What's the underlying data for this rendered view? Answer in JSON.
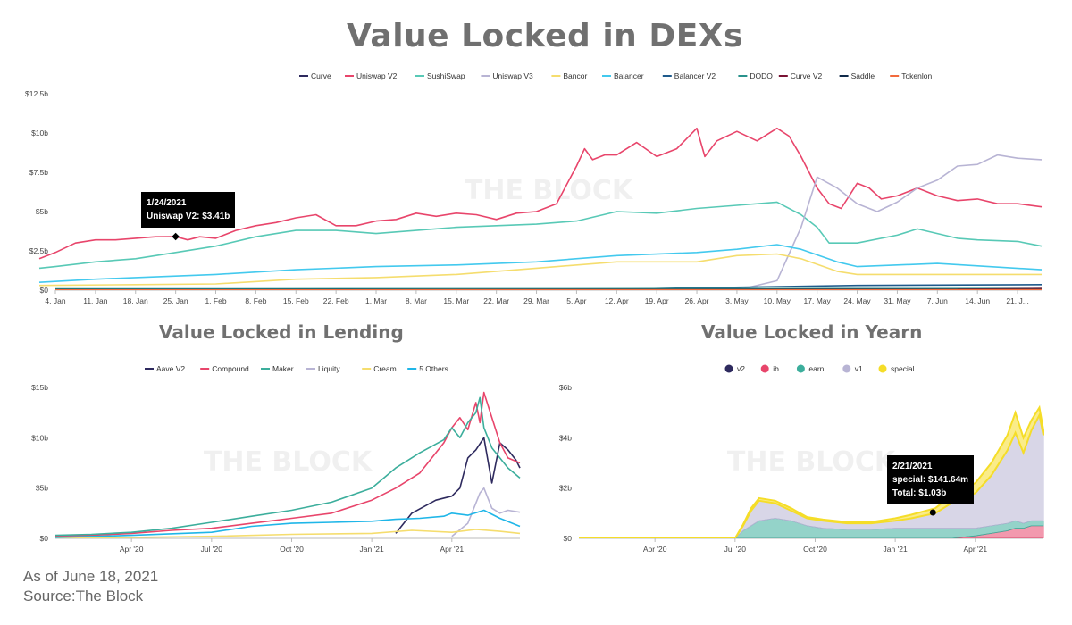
{
  "titles": {
    "main": "Value Locked in DEXs",
    "lending": "Value Locked in Lending",
    "yearn": "Value Locked in Yearn"
  },
  "watermark": "THE BLOCK",
  "footer": {
    "as_of": "As of June 18, 2021",
    "source": "Source:The Block"
  },
  "tooltips": {
    "dex": {
      "line1": "1/24/2021",
      "line2": "Uniswap V2: $3.41b"
    },
    "yearn": {
      "line1": "2/21/2021",
      "line2": "special: $141.64m",
      "line3": "Total: $1.03b"
    }
  },
  "chart_data": [
    {
      "id": "dex",
      "type": "line",
      "title": "Value Locked in DEXs",
      "y_ticks": [
        "$0",
        "$2.5b",
        "$5b",
        "$7.5b",
        "$10b",
        "$12.5b"
      ],
      "ylim": [
        0,
        12.5
      ],
      "x_ticks": [
        "4. Jan",
        "11. Jan",
        "18. Jan",
        "25. Jan",
        "1. Feb",
        "8. Feb",
        "15. Feb",
        "22. Feb",
        "1. Mar",
        "8. Mar",
        "15. Mar",
        "22. Mar",
        "29. Mar",
        "5. Apr",
        "12. Apr",
        "19. Apr",
        "26. Apr",
        "3. May",
        "10. May",
        "17. May",
        "24. May",
        "31. May",
        "7. Jun",
        "14. Jun",
        "21. J..."
      ],
      "xlim": [
        0,
        24.6
      ],
      "legend_position": "top",
      "series": [
        {
          "name": "Curve",
          "color": "#2e2a5e",
          "x": [
            0,
            24.6
          ],
          "y": [
            0.05,
            0.05
          ]
        },
        {
          "name": "Uniswap V2",
          "color": "#e8456b",
          "x": [
            -0.4,
            0,
            0.5,
            1,
            1.5,
            2,
            2.5,
            3,
            3.3,
            3.6,
            4,
            4.5,
            5,
            5.5,
            6,
            6.5,
            7,
            7.5,
            8,
            8.5,
            9,
            9.5,
            10,
            10.5,
            11,
            11.5,
            12,
            12.5,
            13,
            13.2,
            13.4,
            13.7,
            14,
            14.5,
            15,
            15.5,
            16,
            16.2,
            16.5,
            17,
            17.5,
            18,
            18.3,
            18.6,
            19,
            19.3,
            19.6,
            20,
            20.3,
            20.6,
            21,
            21.5,
            22,
            22.5,
            23,
            23.5,
            24,
            24.6
          ],
          "y": [
            2.0,
            2.4,
            3.0,
            3.2,
            3.2,
            3.3,
            3.4,
            3.41,
            3.2,
            3.4,
            3.3,
            3.8,
            4.1,
            4.3,
            4.6,
            4.8,
            4.1,
            4.1,
            4.4,
            4.5,
            4.9,
            4.7,
            4.9,
            4.8,
            4.5,
            4.9,
            5.0,
            5.5,
            7.9,
            9.0,
            8.3,
            8.6,
            8.6,
            9.4,
            8.5,
            9.0,
            10.3,
            8.5,
            9.5,
            10.1,
            9.5,
            10.3,
            9.8,
            8.5,
            6.5,
            5.5,
            5.2,
            6.8,
            6.5,
            5.8,
            6.0,
            6.5,
            6.0,
            5.7,
            5.8,
            5.5,
            5.5,
            5.3
          ]
        },
        {
          "name": "SushiSwap",
          "color": "#58c9b6",
          "x": [
            -0.4,
            0,
            1,
            2,
            3,
            4,
            5,
            6,
            7,
            8,
            9,
            10,
            11,
            12,
            13,
            14,
            15,
            16,
            17,
            18,
            18.6,
            19,
            19.3,
            20,
            21,
            21.5,
            22,
            22.5,
            23,
            24,
            24.6
          ],
          "y": [
            1.4,
            1.5,
            1.8,
            2.0,
            2.4,
            2.8,
            3.4,
            3.8,
            3.8,
            3.6,
            3.8,
            4.0,
            4.1,
            4.2,
            4.4,
            5.0,
            4.9,
            5.2,
            5.4,
            5.6,
            4.8,
            4.0,
            3.0,
            3.0,
            3.5,
            3.9,
            3.6,
            3.3,
            3.2,
            3.1,
            2.8
          ]
        },
        {
          "name": "Uniswap V3",
          "color": "#b8b4d4",
          "x": [
            17,
            18,
            18.6,
            19,
            19.5,
            20,
            20.5,
            21,
            21.5,
            22,
            22.5,
            23,
            23.5,
            24,
            24.6
          ],
          "y": [
            0.0,
            0.6,
            4.0,
            7.2,
            6.5,
            5.5,
            5.0,
            5.6,
            6.5,
            7.0,
            7.9,
            8.0,
            8.6,
            8.4,
            8.3
          ]
        },
        {
          "name": "Bancor",
          "color": "#f5dd6e",
          "x": [
            -0.4,
            2,
            4,
            6,
            8,
            10,
            12,
            14,
            16,
            17,
            18,
            18.6,
            19.5,
            20,
            22,
            24.6
          ],
          "y": [
            0.3,
            0.35,
            0.4,
            0.7,
            0.8,
            1.0,
            1.4,
            1.8,
            1.8,
            2.2,
            2.3,
            2.0,
            1.2,
            1.0,
            1.0,
            1.0
          ]
        },
        {
          "name": "Balancer",
          "color": "#43c9ee",
          "x": [
            -0.4,
            1,
            2,
            3,
            4,
            6,
            8,
            10,
            12,
            14,
            16,
            17,
            18,
            18.6,
            19.5,
            20,
            22,
            24.6
          ],
          "y": [
            0.5,
            0.7,
            0.8,
            0.9,
            1.0,
            1.3,
            1.5,
            1.6,
            1.8,
            2.2,
            2.4,
            2.6,
            2.9,
            2.6,
            1.8,
            1.5,
            1.7,
            1.3
          ]
        },
        {
          "name": "Balancer V2",
          "color": "#1e5a8c",
          "x": [
            13,
            16,
            20,
            24.6
          ],
          "y": [
            0.0,
            0.15,
            0.3,
            0.35
          ]
        },
        {
          "name": "DODO",
          "color": "#29928c",
          "x": [
            0,
            24.6
          ],
          "y": [
            0.08,
            0.1
          ]
        },
        {
          "name": "Curve V2",
          "color": "#7a1234",
          "x": [
            22.5,
            24.6
          ],
          "y": [
            0.05,
            0.1
          ]
        },
        {
          "name": "Saddle",
          "color": "#0f2a4a",
          "x": [
            0,
            24.6
          ],
          "y": [
            0.02,
            0.05
          ]
        },
        {
          "name": "Tokenlon",
          "color": "#f26a3c",
          "x": [
            0,
            24.6
          ],
          "y": [
            0.01,
            0.02
          ]
        }
      ]
    },
    {
      "id": "lending",
      "type": "line",
      "title": "Value Locked in Lending",
      "y_ticks": [
        "$0",
        "$5b",
        "$10b",
        "$15b"
      ],
      "ylim": [
        0,
        15
      ],
      "x_ticks": [
        "Apr '20",
        "Jul '20",
        "Oct '20",
        "Jan '21",
        "Apr '21"
      ],
      "x_tick_pos": [
        1,
        2,
        3,
        4,
        5
      ],
      "xlim": [
        0.05,
        5.85
      ],
      "legend_position": "top",
      "series": [
        {
          "name": "Aave V2",
          "color": "#2e2a5e",
          "x": [
            4.3,
            4.5,
            4.8,
            5.0,
            5.1,
            5.2,
            5.3,
            5.4,
            5.5,
            5.6,
            5.7,
            5.8,
            5.85
          ],
          "y": [
            0.5,
            2.5,
            3.8,
            4.2,
            5.0,
            8.0,
            8.8,
            10.0,
            5.5,
            9.5,
            8.8,
            7.8,
            7.0
          ]
        },
        {
          "name": "Compound",
          "color": "#e8456b",
          "x": [
            0.05,
            0.5,
            1,
            1.5,
            2,
            2.5,
            3,
            3.5,
            4,
            4.3,
            4.6,
            4.9,
            5.0,
            5.1,
            5.2,
            5.3,
            5.35,
            5.4,
            5.5,
            5.6,
            5.7,
            5.85
          ],
          "y": [
            0.2,
            0.3,
            0.5,
            0.8,
            1.0,
            1.5,
            2.0,
            2.5,
            3.8,
            5.0,
            6.5,
            9.5,
            11.0,
            12.0,
            10.8,
            13.5,
            11.5,
            14.5,
            12.0,
            9.5,
            8.0,
            7.5
          ]
        },
        {
          "name": "Maker",
          "color": "#3cae9c",
          "x": [
            0.05,
            0.5,
            1,
            1.5,
            2,
            2.5,
            3,
            3.5,
            4,
            4.3,
            4.6,
            4.9,
            5.0,
            5.1,
            5.2,
            5.3,
            5.35,
            5.4,
            5.5,
            5.6,
            5.7,
            5.85
          ],
          "y": [
            0.3,
            0.4,
            0.6,
            1.0,
            1.6,
            2.2,
            2.8,
            3.6,
            5.0,
            7.0,
            8.5,
            9.8,
            11.0,
            10.0,
            11.5,
            12.5,
            14.0,
            11.0,
            9.0,
            8.0,
            7.0,
            6.0
          ]
        },
        {
          "name": "Liquity",
          "color": "#b8b4d4",
          "x": [
            5.0,
            5.2,
            5.35,
            5.4,
            5.5,
            5.6,
            5.7,
            5.85
          ],
          "y": [
            0.2,
            1.5,
            4.5,
            5.0,
            3.0,
            2.5,
            2.8,
            2.6
          ]
        },
        {
          "name": "Cream",
          "color": "#f5dd6e",
          "x": [
            0.05,
            2,
            3,
            4,
            4.5,
            5.0,
            5.3,
            5.6,
            5.85
          ],
          "y": [
            0.0,
            0.2,
            0.4,
            0.5,
            0.8,
            0.6,
            0.9,
            0.7,
            0.5
          ]
        },
        {
          "name": "5 Others",
          "color": "#1fb6e8",
          "x": [
            0.05,
            1,
            2,
            2.5,
            3,
            3.5,
            4,
            4.3,
            4.6,
            4.9,
            5.0,
            5.2,
            5.4,
            5.6,
            5.85
          ],
          "y": [
            0.1,
            0.3,
            0.6,
            1.2,
            1.5,
            1.6,
            1.7,
            1.9,
            2.0,
            2.2,
            2.5,
            2.3,
            2.8,
            2.0,
            1.2
          ]
        }
      ]
    },
    {
      "id": "yearn",
      "type": "area",
      "title": "Value Locked in Yearn",
      "y_ticks": [
        "$0",
        "$2b",
        "$4b",
        "$6b"
      ],
      "ylim": [
        0,
        6
      ],
      "x_ticks": [
        "Apr '20",
        "Jul '20",
        "Oct '20",
        "Jan '21",
        "Apr '21"
      ],
      "x_tick_pos": [
        1,
        2,
        3,
        4,
        5
      ],
      "xlim": [
        0.05,
        5.85
      ],
      "legend_position": "top",
      "stacked": true,
      "x": [
        0.05,
        1.5,
        2.0,
        2.1,
        2.2,
        2.3,
        2.5,
        2.7,
        2.9,
        3.1,
        3.4,
        3.7,
        4.0,
        4.2,
        4.5,
        4.7,
        5.0,
        5.2,
        5.4,
        5.5,
        5.6,
        5.7,
        5.8,
        5.85
      ],
      "series": [
        {
          "name": "v2",
          "color": "#2e2a5e",
          "values": [
            0,
            0,
            0,
            0,
            0,
            0,
            0,
            0,
            0,
            0,
            0,
            0,
            0,
            0,
            0,
            0,
            0,
            0,
            0,
            0,
            0,
            0,
            0,
            0
          ]
        },
        {
          "name": "ib",
          "color": "#e8456b",
          "values": [
            0,
            0,
            0,
            0,
            0,
            0,
            0,
            0,
            0,
            0,
            0,
            0,
            0,
            0,
            0,
            0,
            0.1,
            0.2,
            0.3,
            0.4,
            0.4,
            0.5,
            0.5,
            0.5
          ]
        },
        {
          "name": "earn",
          "color": "#3cae9c",
          "values": [
            0,
            0,
            0,
            0.3,
            0.5,
            0.7,
            0.8,
            0.7,
            0.5,
            0.4,
            0.35,
            0.35,
            0.4,
            0.4,
            0.4,
            0.4,
            0.3,
            0.3,
            0.3,
            0.3,
            0.2,
            0.2,
            0.2,
            0.2
          ]
        },
        {
          "name": "v1",
          "color": "#b8b4d4",
          "values": [
            0,
            0,
            0,
            0.2,
            0.6,
            0.8,
            0.6,
            0.4,
            0.3,
            0.3,
            0.25,
            0.25,
            0.3,
            0.4,
            0.6,
            1.0,
            1.4,
            2.0,
            2.9,
            3.5,
            2.8,
            3.6,
            4.2,
            3.4
          ]
        },
        {
          "name": "special",
          "color": "#f5dd28",
          "values": [
            0,
            0,
            0,
            0.05,
            0.1,
            0.1,
            0.1,
            0.1,
            0.05,
            0.05,
            0.05,
            0.05,
            0.1,
            0.14,
            0.2,
            0.3,
            0.4,
            0.5,
            0.6,
            0.8,
            0.6,
            0.4,
            0.3,
            0.2
          ]
        }
      ]
    }
  ]
}
